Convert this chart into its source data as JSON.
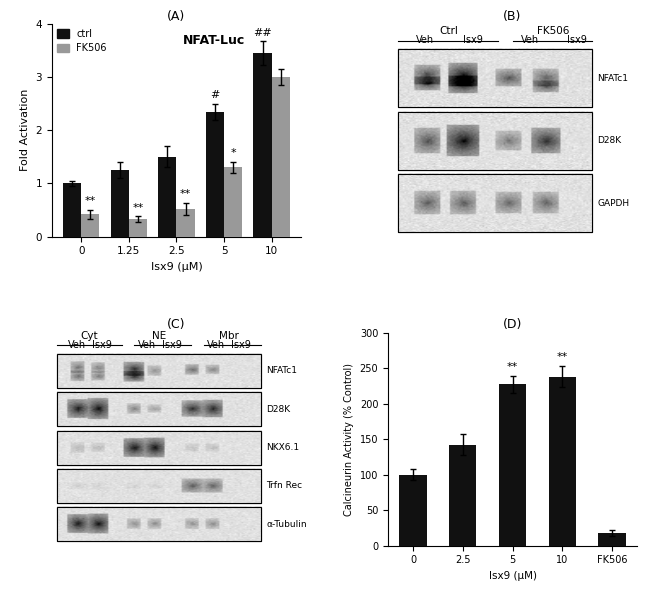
{
  "panel_A": {
    "title": "(A)",
    "inner_title": "NFAT-Luc",
    "xlabel": "Isx9 (μM)",
    "ylabel": "Fold Activation",
    "categories": [
      "0",
      "1.25",
      "2.5",
      "5",
      "10"
    ],
    "ctrl_values": [
      1.0,
      1.25,
      1.5,
      2.35,
      3.45
    ],
    "ctrl_errors": [
      0.05,
      0.15,
      0.2,
      0.15,
      0.22
    ],
    "fk506_values": [
      0.42,
      0.33,
      0.52,
      1.3,
      3.0
    ],
    "fk506_errors": [
      0.08,
      0.05,
      0.12,
      0.1,
      0.15
    ],
    "ctrl_color": "#111111",
    "fk506_color": "#999999",
    "ylim": [
      0,
      4
    ],
    "yticks": [
      0,
      1,
      2,
      3,
      4
    ],
    "annotations_ctrl": [
      "",
      "",
      "",
      "#",
      "##"
    ],
    "annotations_fk506": [
      "**",
      "**",
      "**",
      "*",
      ""
    ],
    "legend_ctrl": "ctrl",
    "legend_fk506": "FK506"
  },
  "panel_D": {
    "title": "(D)",
    "xlabel": "Isx9 (μM)",
    "ylabel": "Calcineurin Activity (% Control)",
    "categories": [
      "0",
      "2.5",
      "5",
      "10",
      "FK506"
    ],
    "values": [
      100,
      142,
      227,
      238,
      18
    ],
    "errors": [
      8,
      15,
      12,
      15,
      4
    ],
    "bar_color": "#111111",
    "ylim": [
      0,
      300
    ],
    "yticks": [
      0,
      50,
      100,
      150,
      200,
      250,
      300
    ],
    "annotations": [
      "",
      "",
      "**",
      "**",
      ""
    ]
  },
  "background_color": "#ffffff"
}
